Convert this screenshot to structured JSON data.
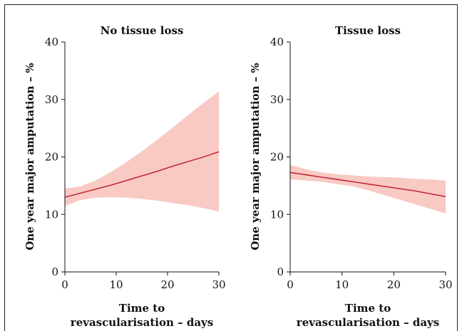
{
  "chart_data": [
    {
      "type": "area",
      "title": "No tissue loss",
      "xlabel": [
        "Time to",
        "revascularisation – days"
      ],
      "ylabel": "One year major amputation – %",
      "xlim": [
        0,
        30
      ],
      "ylim": [
        0,
        40
      ],
      "xticks": [
        "0",
        "10",
        "20",
        "30"
      ],
      "yticks": [
        "0",
        "10",
        "20",
        "30",
        "40"
      ],
      "x": [
        0,
        3,
        6,
        9,
        12,
        15,
        18,
        21,
        24,
        27,
        30
      ],
      "series": [
        {
          "values": [
            13.0,
            13.7,
            14.4,
            15.1,
            15.9,
            16.7,
            17.5,
            18.4,
            19.2,
            20.0,
            20.9
          ],
          "lower": [
            11.5,
            12.5,
            12.9,
            13.0,
            12.9,
            12.7,
            12.4,
            12.0,
            11.6,
            11.1,
            10.5
          ],
          "upper": [
            14.5,
            14.9,
            15.9,
            17.4,
            19.1,
            21.0,
            23.0,
            25.1,
            27.3,
            29.4,
            31.4
          ]
        }
      ],
      "grid": false,
      "colors": {
        "line": "#c0182c",
        "band": "#f9c9c3"
      }
    },
    {
      "type": "area",
      "title": "Tissue loss",
      "xlabel": [
        "Time to",
        "revascularisation – days"
      ],
      "ylabel": "One year major amputation – %",
      "xlim": [
        0,
        30
      ],
      "ylim": [
        0,
        40
      ],
      "xticks": [
        "0",
        "10",
        "20",
        "30"
      ],
      "yticks": [
        "0",
        "10",
        "20",
        "30",
        "40"
      ],
      "x": [
        0,
        3,
        6,
        9,
        12,
        15,
        18,
        21,
        24,
        27,
        30
      ],
      "series": [
        {
          "values": [
            17.3,
            16.9,
            16.5,
            16.1,
            15.7,
            15.3,
            14.9,
            14.5,
            14.1,
            13.6,
            13.1
          ],
          "lower": [
            16.1,
            15.9,
            15.7,
            15.3,
            14.9,
            14.2,
            13.4,
            12.6,
            11.8,
            11.0,
            10.2
          ],
          "upper": [
            18.6,
            17.9,
            17.3,
            17.0,
            16.8,
            16.6,
            16.5,
            16.4,
            16.2,
            16.1,
            15.9
          ]
        }
      ],
      "grid": false,
      "colors": {
        "line": "#c0182c",
        "band": "#f9c9c3"
      }
    }
  ]
}
